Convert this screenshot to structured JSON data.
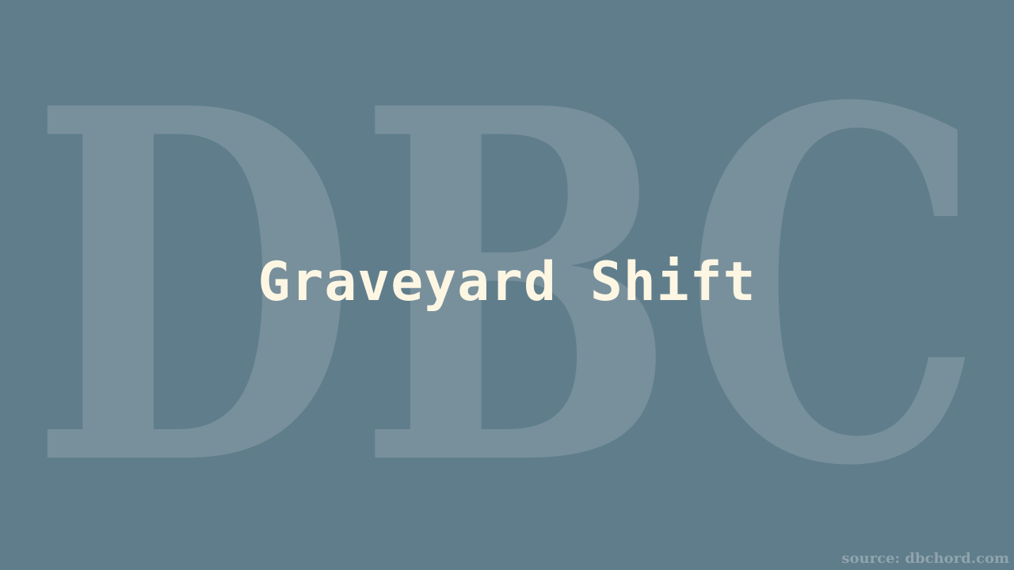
{
  "background_color": "#607d8b",
  "watermark": {
    "text": "DBC",
    "color": "#78909c"
  },
  "title": "Graveyard Shift",
  "title_color": "#fdf6e3",
  "source": "source: dbchord.com"
}
